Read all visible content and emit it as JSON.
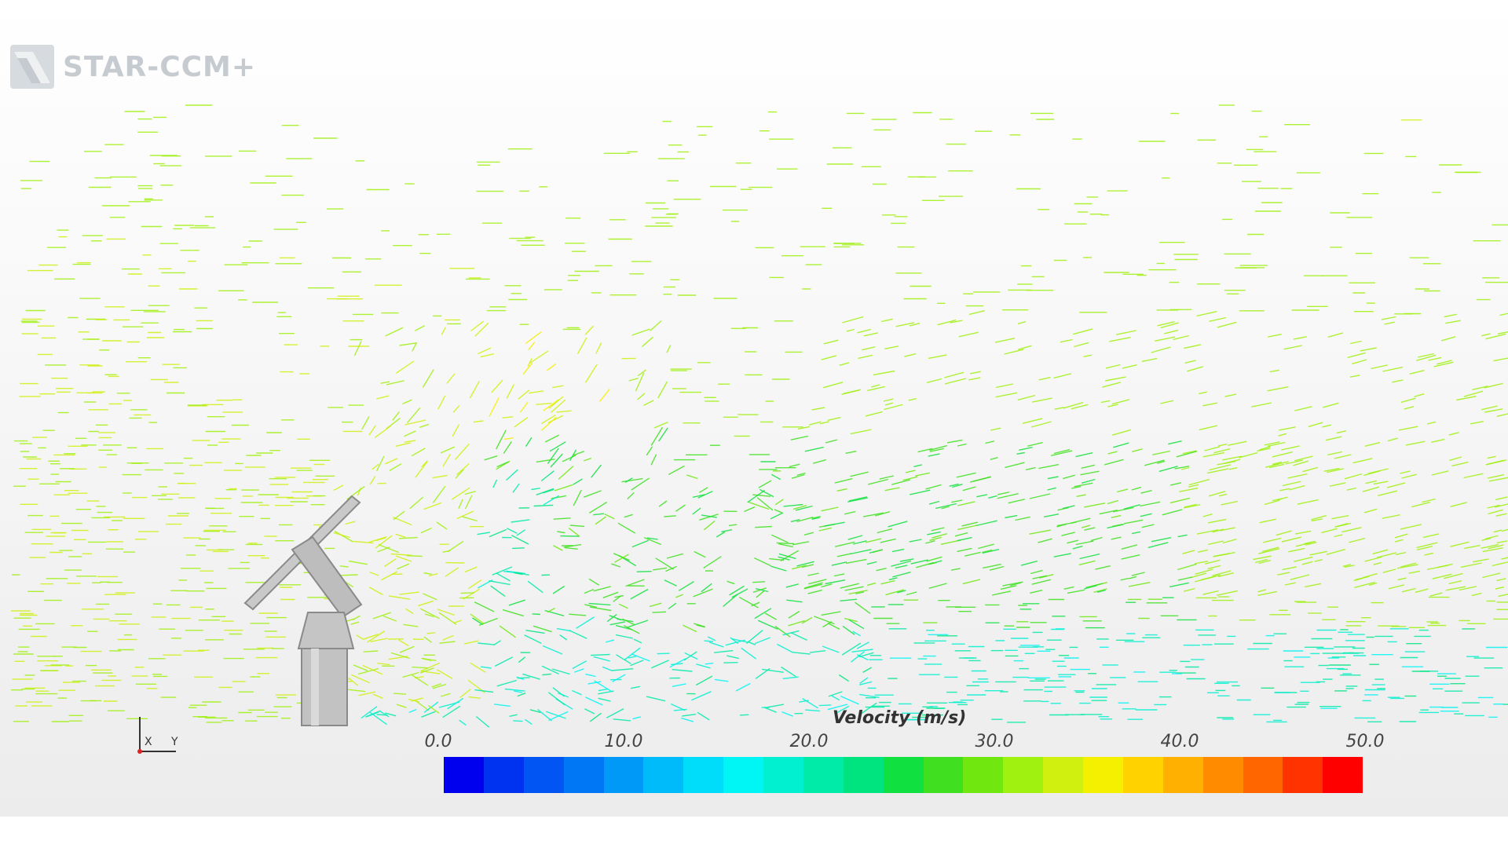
{
  "app": {
    "logo_text": "STAR-CCM+"
  },
  "scene": {
    "triad": {
      "axis_x": "X",
      "axis_y": "Y"
    }
  },
  "colorbar": {
    "title": "Velocity (m/s)",
    "min": 0.0,
    "max": 50.0,
    "ticks": [
      "0.0",
      "10.0",
      "20.0",
      "30.0",
      "40.0",
      "50.0"
    ],
    "colors": [
      "#0000ee",
      "#0033f0",
      "#0055f3",
      "#0077f5",
      "#0099f7",
      "#00bbf9",
      "#00ddfb",
      "#00f5f5",
      "#00f0d0",
      "#00eaa8",
      "#00e480",
      "#10e040",
      "#40e020",
      "#70e810",
      "#a0f010",
      "#d0f010",
      "#f4f000",
      "#ffd200",
      "#ffb000",
      "#ff8c00",
      "#ff6600",
      "#ff3300",
      "#ff0000"
    ]
  },
  "colors": {
    "freestream": "#9ae62c",
    "wake": "#33dde6",
    "structure": "#b5b5b5"
  }
}
